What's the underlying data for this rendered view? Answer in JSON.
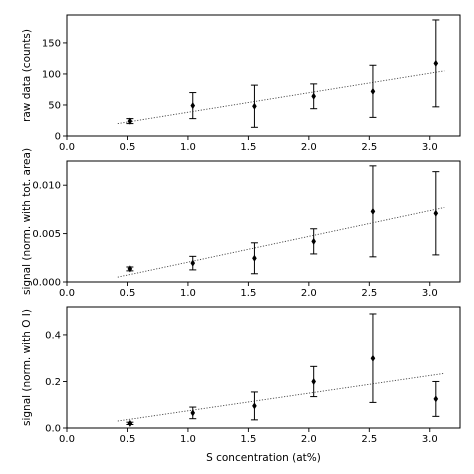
{
  "chart_data": {
    "type": "scatter",
    "xlabel": "S concentration (at%)",
    "xlim": [
      0.0,
      3.25
    ],
    "xticks": [
      "0.0",
      "0.5",
      "1.0",
      "1.5",
      "2.0",
      "2.5",
      "3.0"
    ],
    "grid": false,
    "legend": "none",
    "marker": "diamond",
    "fit_line_style": "dotted",
    "panels": [
      {
        "ylabel": "raw data (counts)",
        "ylim": [
          0,
          195
        ],
        "yticks": [
          "0",
          "50",
          "100",
          "150"
        ],
        "x": [
          0.52,
          1.04,
          1.55,
          2.04,
          2.53,
          3.05
        ],
        "y": [
          24,
          49,
          48,
          64,
          72,
          117
        ],
        "yerr": [
          4,
          21,
          34,
          20,
          42,
          70
        ],
        "fit": {
          "x": [
            0.42,
            3.12
          ],
          "y": [
            20,
            105
          ]
        }
      },
      {
        "ylabel": "signal (norm. with tot. area)",
        "ylim": [
          0,
          0.0125
        ],
        "yticks": [
          "0.000",
          "0.005",
          "0.010"
        ],
        "x": [
          0.52,
          1.04,
          1.55,
          2.04,
          2.53,
          3.05
        ],
        "y": [
          0.00135,
          0.00195,
          0.00245,
          0.0042,
          0.0073,
          0.0071
        ],
        "yerr": [
          0.0002,
          0.0007,
          0.0016,
          0.0013,
          0.0047,
          0.0043
        ],
        "fit": {
          "x": [
            0.42,
            3.12
          ],
          "y": [
            0.0005,
            0.0077
          ]
        }
      },
      {
        "ylabel": "signal (norm. with O I)",
        "ylim": [
          0,
          0.52
        ],
        "yticks": [
          "0.0",
          "0.2",
          "0.4"
        ],
        "x": [
          0.52,
          1.04,
          1.55,
          2.04,
          2.53,
          3.05
        ],
        "y": [
          0.02,
          0.065,
          0.095,
          0.2,
          0.3,
          0.125
        ],
        "yerr": [
          0.005,
          0.025,
          0.06,
          0.065,
          0.19,
          0.075
        ],
        "fit": {
          "x": [
            0.42,
            3.12
          ],
          "y": [
            0.03,
            0.235
          ]
        }
      }
    ]
  }
}
